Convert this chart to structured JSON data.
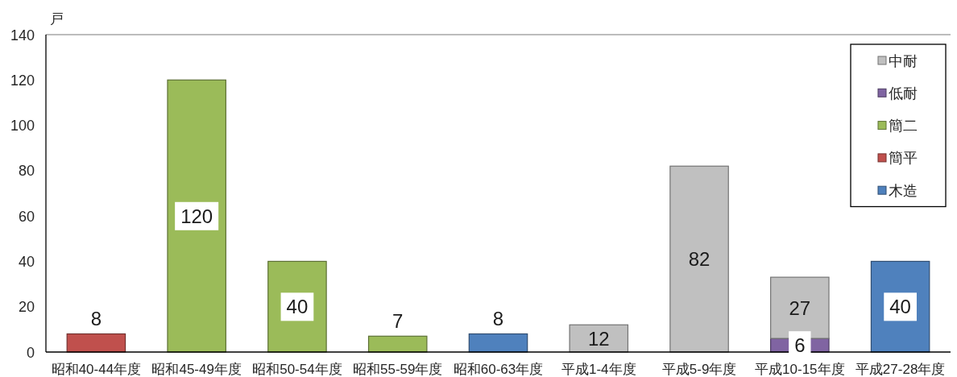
{
  "chart_data": {
    "type": "bar",
    "ylabel": "戸",
    "categories": [
      "昭和40-44年度",
      "昭和45-49年度",
      "昭和50-54年度",
      "昭和55-59年度",
      "昭和60-63年度",
      "平成1-4年度",
      "平成5-9年度",
      "平成10-15年度",
      "平成27-28年度"
    ],
    "stacked": true,
    "series": [
      {
        "name": "木造",
        "color": "#4f81bd",
        "values": [
          null,
          null,
          null,
          null,
          8,
          null,
          null,
          null,
          40
        ]
      },
      {
        "name": "簡平",
        "color": "#c0504d",
        "values": [
          8,
          null,
          null,
          null,
          null,
          null,
          null,
          null,
          null
        ]
      },
      {
        "name": "簡二",
        "color": "#9bbb59",
        "values": [
          null,
          120,
          40,
          7,
          null,
          null,
          null,
          null,
          null
        ]
      },
      {
        "name": "低耐",
        "color": "#8064a2",
        "values": [
          null,
          null,
          null,
          null,
          null,
          null,
          null,
          6,
          null
        ]
      },
      {
        "name": "中耐",
        "color": "#c0c0c0",
        "values": [
          null,
          null,
          null,
          null,
          null,
          12,
          82,
          27,
          null
        ]
      }
    ],
    "ylim": [
      0,
      140
    ],
    "yticks": [
      0,
      20,
      40,
      60,
      80,
      100,
      120,
      140
    ],
    "data_labels": true,
    "legend": "top right"
  }
}
